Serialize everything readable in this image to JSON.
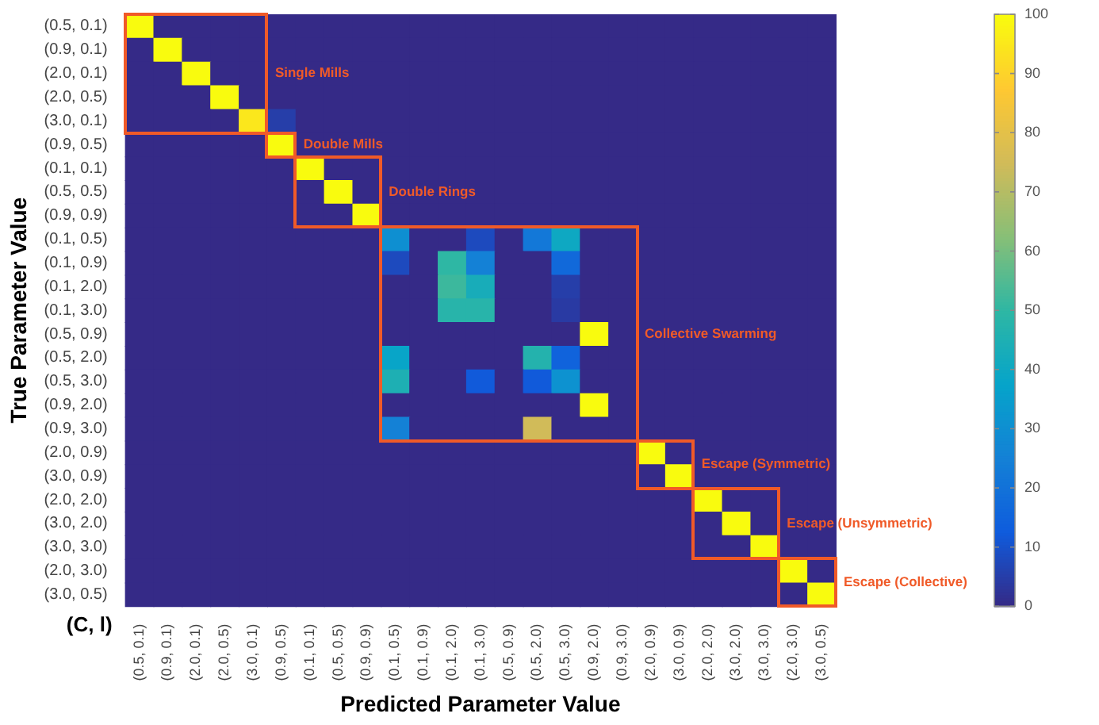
{
  "chart_data": {
    "type": "heatmap",
    "xlabel": "Predicted Parameter Value",
    "ylabel": "True Parameter Value",
    "categories": [
      "(0.5, 0.1)",
      "(0.9, 0.1)",
      "(2.0, 0.1)",
      "(2.0, 0.5)",
      "(3.0, 0.1)",
      "(0.9, 0.5)",
      "(0.1, 0.1)",
      "(0.5, 0.5)",
      "(0.9, 0.9)",
      "(0.1, 0.5)",
      "(0.1, 0.9)",
      "(0.1, 2.0)",
      "(0.1, 3.0)",
      "(0.5, 0.9)",
      "(0.5, 2.0)",
      "(0.5, 3.0)",
      "(0.9, 2.0)",
      "(0.9, 3.0)",
      "(2.0, 0.9)",
      "(3.0, 0.9)",
      "(2.0, 2.0)",
      "(3.0, 2.0)",
      "(3.0, 3.0)",
      "(2.0, 3.0)",
      "(3.0, 0.5)"
    ],
    "y_categories": [
      "(0.5, 0.1)",
      "(0.9, 0.1)",
      "(2.0, 0.1)",
      "(2.0, 0.5)",
      "(3.0, 0.1)",
      "(0.9, 0.5)",
      "(0.1, 0.1)",
      "(0.5, 0.5)",
      "(0.9, 0.9)",
      "(0.1, 0.5)",
      "(0.1, 0.9)",
      "(0.1, 2.0)",
      "(0.1, 3.0)",
      "(0.5, 0.9)",
      "(0.5, 2.0)",
      "(0.5, 3.0)",
      "(0.9, 2.0)",
      "(0.9, 3.0)",
      "(2.0, 0.9)",
      "(3.0, 0.9)",
      "(2.0, 2.0)",
      "(3.0, 2.0)",
      "(3.0, 3.0)",
      "(2.0, 3.0)",
      "(3.0, 0.5)"
    ],
    "cells": [
      [
        100,
        0,
        0,
        0,
        0,
        0,
        0,
        0,
        0,
        0,
        0,
        0,
        0,
        0,
        0,
        0,
        0,
        0,
        0,
        0,
        0,
        0,
        0,
        0,
        0
      ],
      [
        0,
        100,
        0,
        0,
        0,
        0,
        0,
        0,
        0,
        0,
        0,
        0,
        0,
        0,
        0,
        0,
        0,
        0,
        0,
        0,
        0,
        0,
        0,
        0,
        0
      ],
      [
        0,
        0,
        100,
        0,
        0,
        0,
        0,
        0,
        0,
        0,
        0,
        0,
        0,
        0,
        0,
        0,
        0,
        0,
        0,
        0,
        0,
        0,
        0,
        0,
        0
      ],
      [
        0,
        0,
        0,
        100,
        0,
        0,
        0,
        0,
        0,
        0,
        0,
        0,
        0,
        0,
        0,
        0,
        0,
        0,
        0,
        0,
        0,
        0,
        0,
        0,
        0
      ],
      [
        0,
        0,
        0,
        0,
        95,
        5,
        0,
        0,
        0,
        0,
        0,
        0,
        0,
        0,
        0,
        0,
        0,
        0,
        0,
        0,
        0,
        0,
        0,
        0,
        0
      ],
      [
        0,
        0,
        0,
        0,
        0,
        100,
        0,
        0,
        0,
        0,
        0,
        0,
        0,
        0,
        0,
        0,
        0,
        0,
        0,
        0,
        0,
        0,
        0,
        0,
        0
      ],
      [
        0,
        0,
        0,
        0,
        0,
        0,
        100,
        0,
        0,
        0,
        0,
        0,
        0,
        0,
        0,
        0,
        0,
        0,
        0,
        0,
        0,
        0,
        0,
        0,
        0
      ],
      [
        0,
        0,
        0,
        0,
        0,
        0,
        0,
        100,
        0,
        0,
        0,
        0,
        0,
        0,
        0,
        0,
        0,
        0,
        0,
        0,
        0,
        0,
        0,
        0,
        0
      ],
      [
        0,
        0,
        0,
        0,
        0,
        0,
        0,
        0,
        100,
        0,
        0,
        0,
        0,
        0,
        0,
        0,
        0,
        0,
        0,
        0,
        0,
        0,
        0,
        0,
        0
      ],
      [
        0,
        0,
        0,
        0,
        0,
        0,
        0,
        0,
        0,
        30,
        0,
        0,
        8,
        0,
        22,
        40,
        0,
        0,
        0,
        0,
        0,
        0,
        0,
        0,
        0
      ],
      [
        0,
        0,
        0,
        0,
        0,
        0,
        0,
        0,
        0,
        8,
        0,
        50,
        25,
        0,
        0,
        17,
        0,
        0,
        0,
        0,
        0,
        0,
        0,
        0,
        0
      ],
      [
        0,
        0,
        0,
        0,
        0,
        0,
        0,
        0,
        0,
        0,
        0,
        52,
        43,
        0,
        0,
        5,
        0,
        0,
        0,
        0,
        0,
        0,
        0,
        0,
        0
      ],
      [
        0,
        0,
        0,
        0,
        0,
        0,
        0,
        0,
        0,
        0,
        0,
        48,
        48,
        0,
        0,
        4,
        0,
        0,
        0,
        0,
        0,
        0,
        0,
        0,
        0
      ],
      [
        0,
        0,
        0,
        0,
        0,
        0,
        0,
        0,
        0,
        0,
        0,
        0,
        0,
        0,
        0,
        0,
        100,
        0,
        0,
        0,
        0,
        0,
        0,
        0,
        0
      ],
      [
        0,
        0,
        0,
        0,
        0,
        0,
        0,
        0,
        0,
        38,
        0,
        0,
        0,
        0,
        47,
        15,
        0,
        0,
        0,
        0,
        0,
        0,
        0,
        0,
        0
      ],
      [
        0,
        0,
        0,
        0,
        0,
        0,
        0,
        0,
        0,
        45,
        0,
        0,
        12,
        0,
        12,
        31,
        0,
        0,
        0,
        0,
        0,
        0,
        0,
        0,
        0
      ],
      [
        0,
        0,
        0,
        0,
        0,
        0,
        0,
        0,
        0,
        0,
        0,
        0,
        0,
        0,
        0,
        0,
        100,
        0,
        0,
        0,
        0,
        0,
        0,
        0,
        0
      ],
      [
        0,
        0,
        0,
        0,
        0,
        0,
        0,
        0,
        0,
        25,
        0,
        0,
        0,
        0,
        75,
        0,
        0,
        0,
        0,
        0,
        0,
        0,
        0,
        0,
        0
      ],
      [
        0,
        0,
        0,
        0,
        0,
        0,
        0,
        0,
        0,
        0,
        0,
        0,
        0,
        0,
        0,
        0,
        0,
        0,
        100,
        0,
        0,
        0,
        0,
        0,
        0
      ],
      [
        0,
        0,
        0,
        0,
        0,
        0,
        0,
        0,
        0,
        0,
        0,
        0,
        0,
        0,
        0,
        0,
        0,
        0,
        0,
        100,
        0,
        0,
        0,
        0,
        0
      ],
      [
        0,
        0,
        0,
        0,
        0,
        0,
        0,
        0,
        0,
        0,
        0,
        0,
        0,
        0,
        0,
        0,
        0,
        0,
        0,
        0,
        100,
        0,
        0,
        0,
        0
      ],
      [
        0,
        0,
        0,
        0,
        0,
        0,
        0,
        0,
        0,
        0,
        0,
        0,
        0,
        0,
        0,
        0,
        0,
        0,
        0,
        0,
        0,
        100,
        0,
        0,
        0
      ],
      [
        0,
        0,
        0,
        0,
        0,
        0,
        0,
        0,
        0,
        0,
        0,
        0,
        0,
        0,
        0,
        0,
        0,
        0,
        0,
        0,
        0,
        0,
        100,
        0,
        0
      ],
      [
        0,
        0,
        0,
        0,
        0,
        0,
        0,
        0,
        0,
        0,
        0,
        0,
        0,
        0,
        0,
        0,
        0,
        0,
        0,
        0,
        0,
        0,
        0,
        100,
        0
      ],
      [
        0,
        0,
        0,
        0,
        0,
        0,
        0,
        0,
        0,
        0,
        0,
        0,
        0,
        0,
        0,
        0,
        0,
        0,
        0,
        0,
        0,
        0,
        0,
        0,
        100
      ]
    ],
    "clim": [
      0,
      100
    ],
    "cticks": [
      0,
      10,
      20,
      30,
      40,
      50,
      60,
      70,
      80,
      90,
      100
    ],
    "annotations": [
      "Single Mills",
      "Double Mills",
      "Double Rings",
      "Collective Swarming",
      "Escape (Symmetric)",
      "Escape (Unsymmetric)",
      "Escape (Collective)",
      "(C, l)"
    ]
  }
}
